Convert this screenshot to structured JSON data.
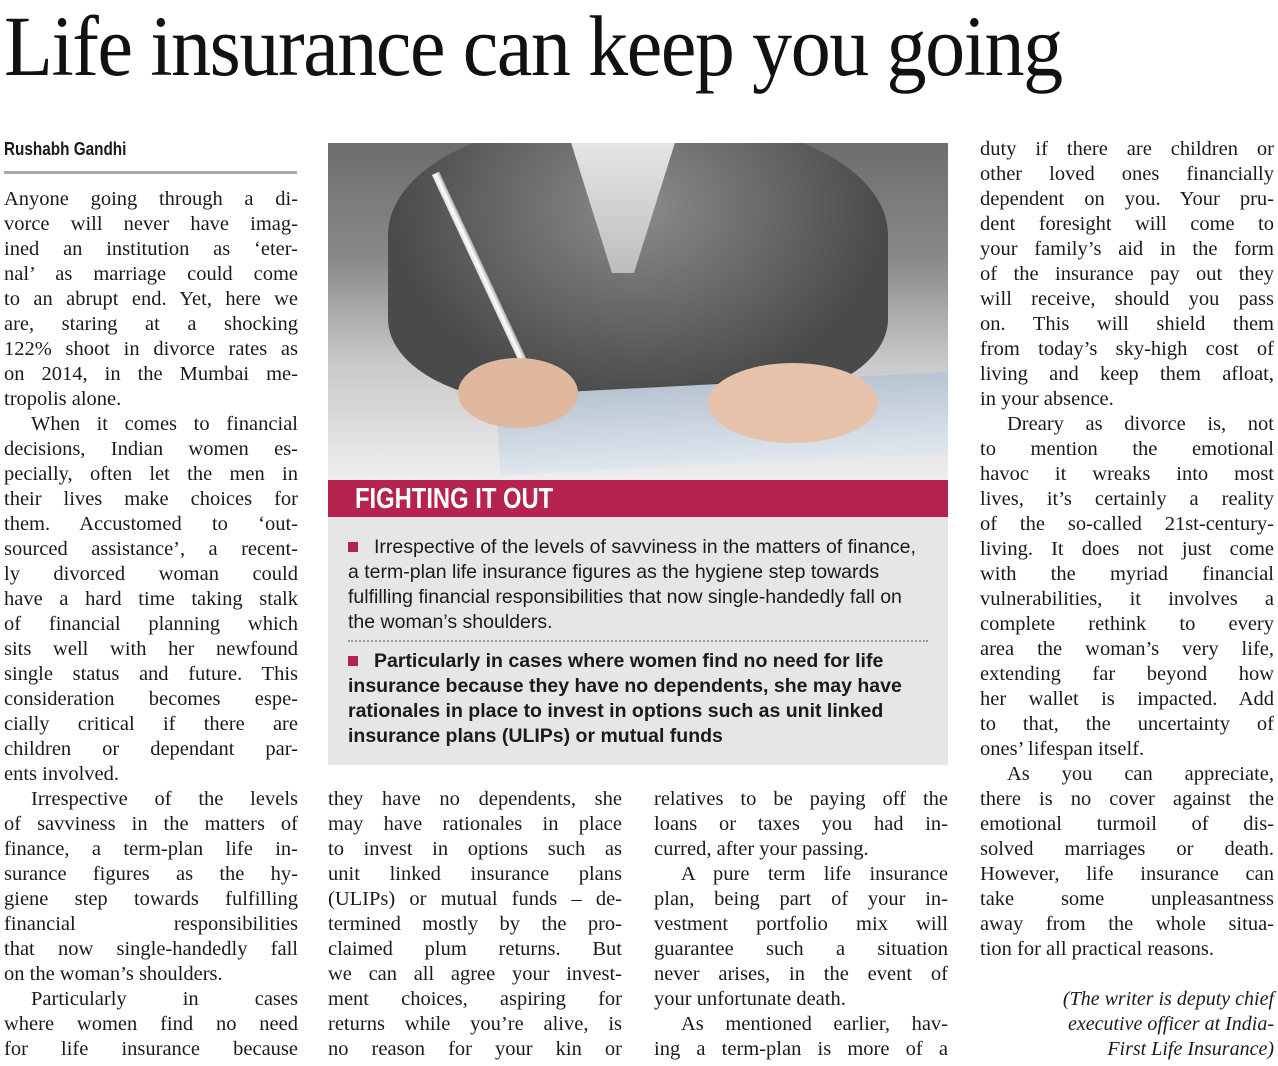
{
  "headline": "Life insurance can keep you going",
  "byline": "Rushabh Gandhi",
  "sidebar": {
    "title": "FIGHTING IT OUT",
    "accent_color": "#b5234f",
    "background_color": "#e6e6e6",
    "bullets": [
      "Irrespective of the levels of savviness in the matters of finance, a term-plan life insurance figures as the hygiene step towards fulfilling financial responsibilities that now single-handedly fall on the woman’s shoulders.",
      "Particularly in cases where women find no need for life insurance because they have no dependents, she may have rationales in place to invest in options such as unit linked insurance plans (ULIPs) or mutual funds"
    ]
  },
  "columns": [
    [
      {
        "t": "Anyone going through a di-"
      },
      {
        "t": "vorce will never have imag-"
      },
      {
        "t": "ined an institution as ‘eter-"
      },
      {
        "t": "nal’ as marriage could come"
      },
      {
        "t": "to an abrupt end. Yet, here we"
      },
      {
        "t": "are, staring at a shocking"
      },
      {
        "t": "122% shoot in divorce rates as"
      },
      {
        "t": "on 2014, in the Mumbai me-"
      },
      {
        "t": "tropolis alone.",
        "last": true
      },
      {
        "t": "When it comes to financial",
        "indent": true
      },
      {
        "t": "decisions, Indian women es-"
      },
      {
        "t": "pecially, often let the men in"
      },
      {
        "t": "their lives make choices for"
      },
      {
        "t": "them. Accustomed to ‘out-"
      },
      {
        "t": "sourced assistance’, a recent-"
      },
      {
        "t": "ly divorced woman could"
      },
      {
        "t": "have a hard time taking stalk"
      },
      {
        "t": "of financial planning which"
      },
      {
        "t": "sits well with her newfound"
      },
      {
        "t": "single status and future. This"
      },
      {
        "t": "consideration becomes espe-"
      },
      {
        "t": "cially critical if there are"
      },
      {
        "t": "children or dependant par-"
      },
      {
        "t": "ents involved.",
        "last": true
      },
      {
        "t": "Irrespective of the levels",
        "indent": true
      },
      {
        "t": "of savviness in the matters of"
      },
      {
        "t": "finance, a term-plan life in-"
      },
      {
        "t": "surance figures as the hy-"
      },
      {
        "t": "giene step towards fulfilling"
      },
      {
        "t": "financial responsibilities"
      },
      {
        "t": "that now single-handedly fall"
      },
      {
        "t": "on the woman’s shoulders.",
        "last": true
      },
      {
        "t": "Particularly in cases",
        "indent": true
      },
      {
        "t": "where women find no need"
      },
      {
        "t": "for life insurance because"
      }
    ],
    [
      {
        "t": "they have no dependents, she"
      },
      {
        "t": "may have rationales in place"
      },
      {
        "t": "to invest in options such as"
      },
      {
        "t": "unit linked insurance plans"
      },
      {
        "t": "(ULIPs) or mutual funds – de-"
      },
      {
        "t": "termined mostly by the pro-"
      },
      {
        "t": "claimed plum returns. But"
      },
      {
        "t": "we can all agree your invest-"
      },
      {
        "t": "ment choices, aspiring for"
      },
      {
        "t": "returns while you’re alive, is"
      },
      {
        "t": "no reason for your kin or"
      }
    ],
    [
      {
        "t": "relatives to be paying off the"
      },
      {
        "t": "loans or taxes you had in-"
      },
      {
        "t": "curred, after your passing.",
        "last": true
      },
      {
        "t": "A pure term life insurance",
        "indent": true
      },
      {
        "t": "plan, being part of your in-"
      },
      {
        "t": "vestment portfolio mix will"
      },
      {
        "t": "guarantee such a situation"
      },
      {
        "t": "never arises, in the event of"
      },
      {
        "t": "your unfortunate death.",
        "last": true
      },
      {
        "t": "As mentioned earlier, hav-",
        "indent": true
      },
      {
        "t": "ing a term-plan is more of a"
      }
    ],
    [
      {
        "t": "duty if there are children or"
      },
      {
        "t": "other loved ones financially"
      },
      {
        "t": "dependent on you. Your pru-"
      },
      {
        "t": "dent foresight will come to"
      },
      {
        "t": "your family’s aid in the form"
      },
      {
        "t": "of the insurance pay out they"
      },
      {
        "t": "will receive, should you pass"
      },
      {
        "t": "on. This will shield them"
      },
      {
        "t": "from today’s sky-high cost of"
      },
      {
        "t": "living and keep them afloat,"
      },
      {
        "t": "in your absence.",
        "last": true
      },
      {
        "t": "Dreary as divorce is, not",
        "indent": true
      },
      {
        "t": "to mention the emotional"
      },
      {
        "t": "havoc it wreaks into most"
      },
      {
        "t": "lives, it’s certainly a reality"
      },
      {
        "t": "of the so-called 21st-century-"
      },
      {
        "t": "living. It does not just come"
      },
      {
        "t": "with the myriad financial"
      },
      {
        "t": "vulnerabilities, it involves a"
      },
      {
        "t": "complete rethink to every"
      },
      {
        "t": "area the woman’s very life,"
      },
      {
        "t": "extending far beyond how"
      },
      {
        "t": "her wallet is impacted. Add"
      },
      {
        "t": "to that, the uncertainty of"
      },
      {
        "t": "ones’ lifespan itself.",
        "last": true
      },
      {
        "t": "As you can appreciate,",
        "indent": true
      },
      {
        "t": "there is no cover against the"
      },
      {
        "t": "emotional turmoil of dis-"
      },
      {
        "t": "solved marriages or death."
      },
      {
        "t": "However, life insurance can"
      },
      {
        "t": "take some unpleasantness"
      },
      {
        "t": "away from the whole situa-"
      },
      {
        "t": "tion for all practical reasons.",
        "last": true
      }
    ]
  ],
  "writer_note": [
    "(The writer is deputy chief",
    "executive officer at India-",
    "First Life Insurance)"
  ]
}
